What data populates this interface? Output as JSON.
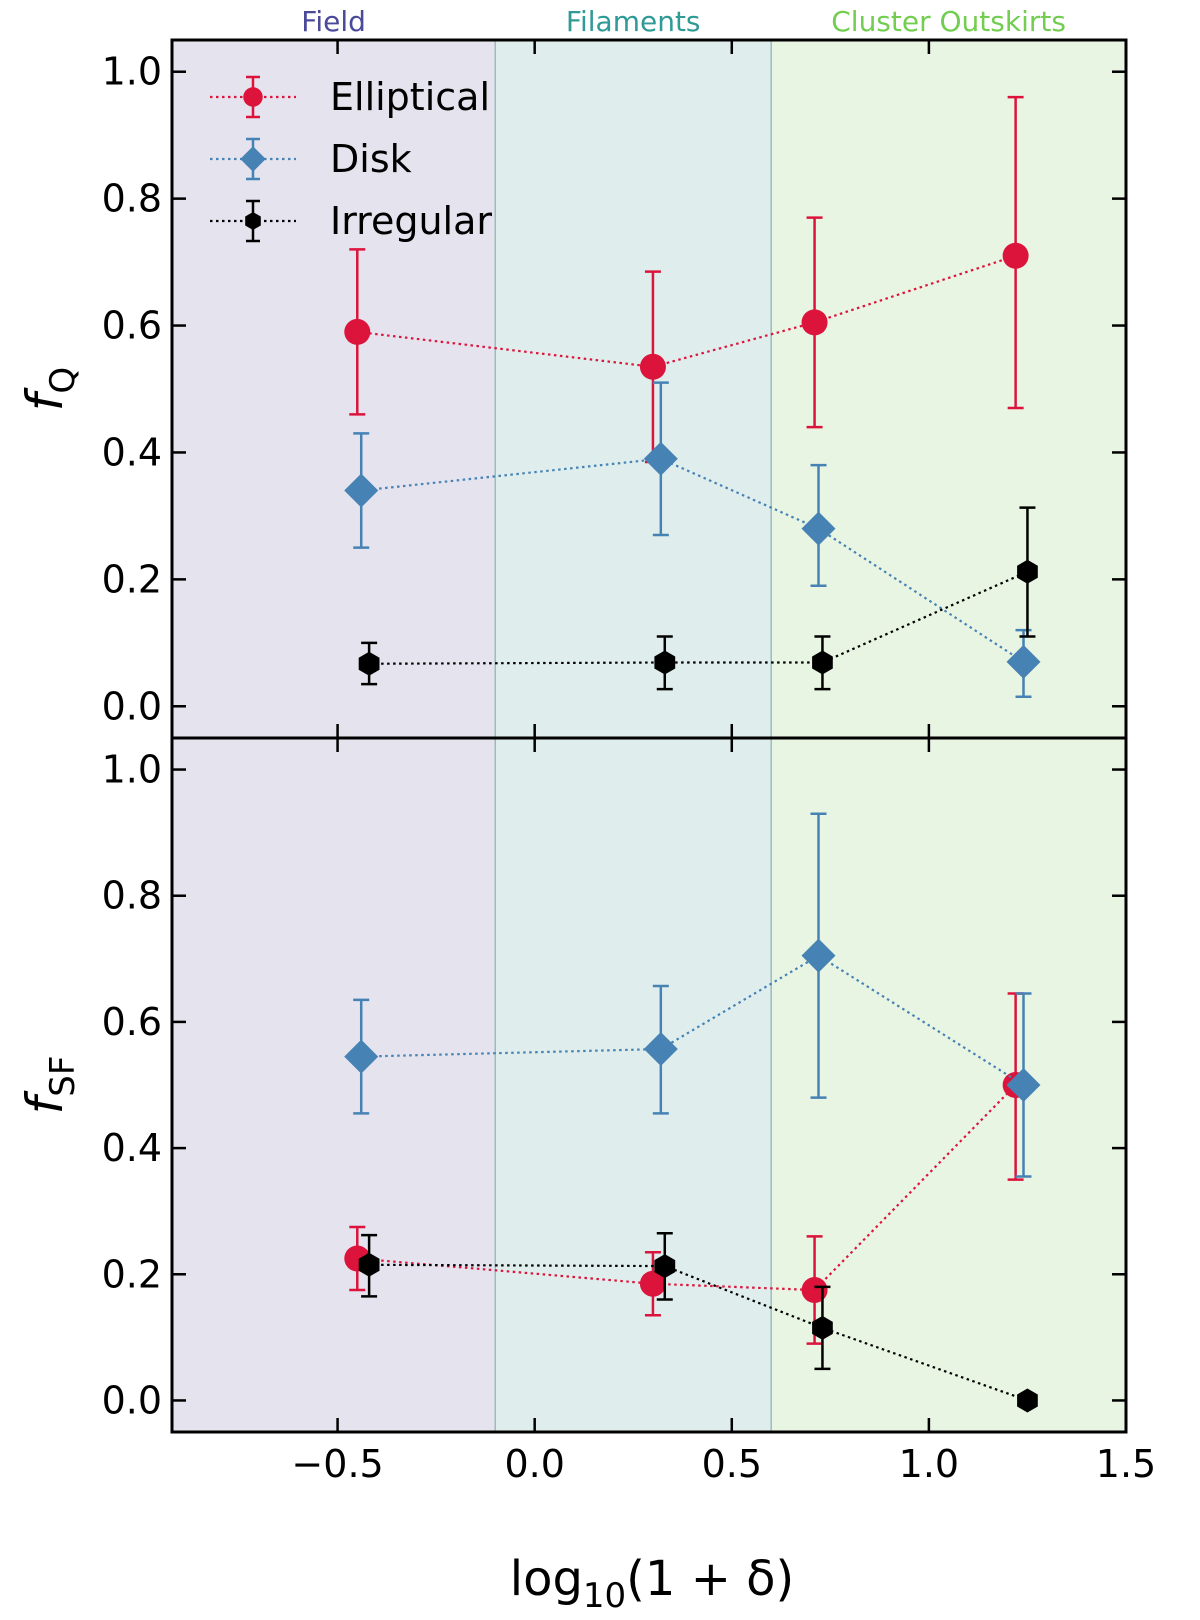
{
  "chart_data": {
    "type": "scatter",
    "xlabel_main": "log",
    "xlabel_sub": "10",
    "xlabel_rest": "(1 + δ)",
    "xlim": [
      -0.92,
      1.5
    ],
    "x_ticks": [
      -0.5,
      0.0,
      0.5,
      1.0,
      1.5
    ],
    "x_tick_labels": [
      "−0.5",
      "0.0",
      "0.5",
      "1.0",
      "1.5"
    ],
    "regions": [
      {
        "name": "Field",
        "x0": -0.92,
        "x1": -0.1,
        "fill": "#e4e3ee",
        "label_color": "#4b4a9a"
      },
      {
        "name": "Filaments",
        "x0": -0.1,
        "x1": 0.6,
        "fill": "#dfeeed",
        "label_color": "#2f9a96"
      },
      {
        "name": "Cluster Outskirts",
        "x0": 0.6,
        "x1": 1.5,
        "fill": "#e9f5e3",
        "label_color": "#72cd50"
      }
    ],
    "legend": {
      "placement": "top-left",
      "entries": [
        {
          "label": "Elliptical",
          "marker": "circle",
          "color": "#dc143c"
        },
        {
          "label": "Disk",
          "marker": "diamond",
          "color": "#4682b4"
        },
        {
          "label": "Irregular",
          "marker": "hexagon",
          "color": "#000000"
        }
      ]
    },
    "panels": [
      {
        "ylabel": "f",
        "ylabel_sub": "Q",
        "ylim": [
          -0.05,
          1.05
        ],
        "y_ticks": [
          0.0,
          0.2,
          0.4,
          0.6,
          0.8,
          1.0
        ],
        "y_tick_labels": [
          "0.0",
          "0.2",
          "0.4",
          "0.6",
          "0.8",
          "1.0"
        ],
        "series": [
          {
            "name": "Elliptical",
            "color": "#dc143c",
            "marker": "circle",
            "x": [
              -0.45,
              0.3,
              0.71,
              1.22
            ],
            "y": [
              0.59,
              0.535,
              0.605,
              0.71
            ],
            "y_lo": [
              0.46,
              0.385,
              0.44,
              0.47
            ],
            "y_hi": [
              0.72,
              0.685,
              0.77,
              0.96
            ]
          },
          {
            "name": "Disk",
            "color": "#4682b4",
            "marker": "diamond",
            "x": [
              -0.44,
              0.32,
              0.72,
              1.24
            ],
            "y": [
              0.34,
              0.39,
              0.28,
              0.07
            ],
            "y_lo": [
              0.25,
              0.27,
              0.19,
              0.015
            ],
            "y_hi": [
              0.43,
              0.51,
              0.38,
              0.12
            ]
          },
          {
            "name": "Irregular",
            "color": "#000000",
            "marker": "hexagon",
            "x": [
              -0.42,
              0.33,
              0.73,
              1.25
            ],
            "y": [
              0.067,
              0.069,
              0.069,
              0.212
            ],
            "y_lo": [
              0.035,
              0.027,
              0.027,
              0.11
            ],
            "y_hi": [
              0.1,
              0.11,
              0.11,
              0.313
            ]
          }
        ]
      },
      {
        "ylabel": "f",
        "ylabel_sub": "SF",
        "ylim": [
          -0.05,
          1.05
        ],
        "y_ticks": [
          0.0,
          0.2,
          0.4,
          0.6,
          0.8,
          1.0
        ],
        "y_tick_labels": [
          "0.0",
          "0.2",
          "0.4",
          "0.6",
          "0.8",
          "1.0"
        ],
        "series": [
          {
            "name": "Elliptical",
            "color": "#dc143c",
            "marker": "circle",
            "x": [
              -0.45,
              0.3,
              0.71,
              1.22
            ],
            "y": [
              0.225,
              0.185,
              0.175,
              0.5
            ],
            "y_lo": [
              0.175,
              0.135,
              0.09,
              0.35
            ],
            "y_hi": [
              0.275,
              0.235,
              0.26,
              0.645
            ]
          },
          {
            "name": "Disk",
            "color": "#4682b4",
            "marker": "diamond",
            "x": [
              -0.44,
              0.32,
              0.72,
              1.24
            ],
            "y": [
              0.545,
              0.557,
              0.705,
              0.5
            ],
            "y_lo": [
              0.455,
              0.455,
              0.48,
              0.355
            ],
            "y_hi": [
              0.635,
              0.657,
              0.93,
              0.645
            ]
          },
          {
            "name": "Irregular",
            "color": "#000000",
            "marker": "hexagon",
            "x": [
              -0.42,
              0.33,
              0.73,
              1.25
            ],
            "y": [
              0.215,
              0.213,
              0.115,
              0.0
            ],
            "y_lo": [
              0.165,
              0.16,
              0.05,
              0.0
            ],
            "y_hi": [
              0.262,
              0.265,
              0.18,
              0.0
            ]
          }
        ]
      }
    ]
  }
}
